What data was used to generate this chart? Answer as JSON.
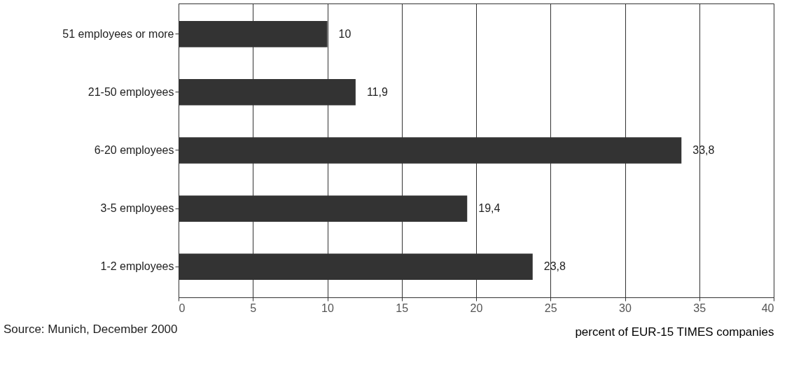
{
  "chart_data": {
    "type": "bar",
    "orientation": "horizontal",
    "categories": [
      "51 employees or more",
      "21-50 employees",
      "6-20 employees",
      "3-5 employees",
      "1-2 employees"
    ],
    "values": [
      10,
      11.9,
      33.8,
      19.4,
      23.8
    ],
    "value_labels": [
      "10",
      "11,9",
      "33,8",
      "19,4",
      "23,8"
    ],
    "color": "#333333",
    "xlim": [
      0,
      40
    ],
    "xticks": [
      0,
      5,
      10,
      15,
      20,
      25,
      30,
      35,
      40
    ],
    "grid": "x",
    "xlabel": "percent of EUR-15 TIMES companies",
    "annotations": [
      "Source: Munich, December 2000"
    ]
  }
}
